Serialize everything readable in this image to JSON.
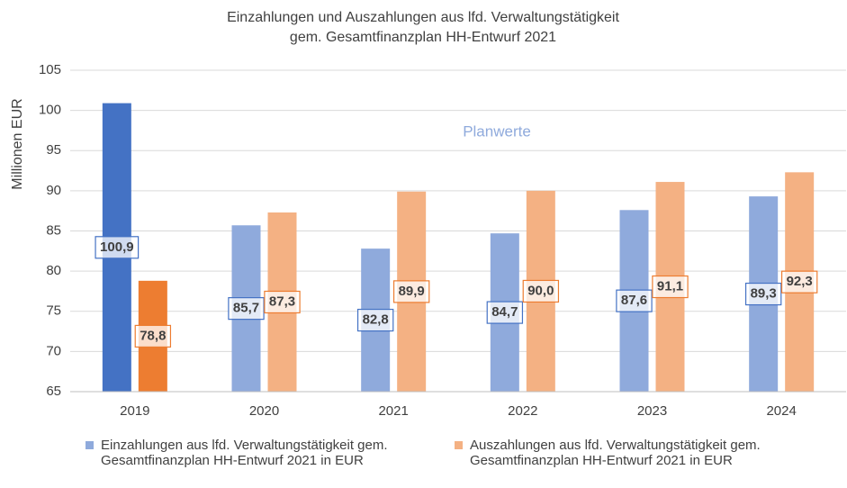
{
  "chart_data": {
    "type": "bar",
    "title": [
      "Einzahlungen und Auszahlungen aus lfd. Verwaltungstätigkeit",
      "gem. Gesamtfinanzplan HH-Entwurf 2021"
    ],
    "y_label": "Millionen EUR",
    "annotation": "Planwerte",
    "categories": [
      "2019",
      "2020",
      "2021",
      "2022",
      "2023",
      "2024"
    ],
    "series": [
      {
        "name": "Einzahlungen aus lfd. Verwaltungstätigkeit gem. Gesamtfinanzplan HH-Entwurf 2021 in EUR",
        "color": "#8faadc",
        "label_color": "#4472c4",
        "colors": [
          "#4472c4",
          "#8faadc",
          "#8faadc",
          "#8faadc",
          "#8faadc",
          "#8faadc"
        ],
        "values": [
          100.9,
          85.7,
          82.8,
          84.7,
          87.6,
          89.3
        ],
        "value_labels": [
          "100,9",
          "85,7",
          "82,8",
          "84,7",
          "87,6",
          "89,3"
        ]
      },
      {
        "name": "Auszahlungen aus lfd. Verwaltungstätigkeit gem. Gesamtfinanzplan HH-Entwurf 2021 in EUR",
        "color": "#f4b183",
        "label_color": "#ed7d31",
        "colors": [
          "#ed7d31",
          "#f4b183",
          "#f4b183",
          "#f4b183",
          "#f4b183",
          "#f4b183"
        ],
        "values": [
          78.8,
          87.3,
          89.9,
          90.0,
          91.1,
          92.3
        ],
        "value_labels": [
          "78,8",
          "87,3",
          "89,9",
          "90,0",
          "91,1",
          "92,3"
        ]
      }
    ],
    "ylim": [
      65,
      105
    ],
    "yticks": [
      65,
      70,
      75,
      80,
      85,
      90,
      95,
      100,
      105
    ],
    "grid": true,
    "legend": "bottom"
  }
}
